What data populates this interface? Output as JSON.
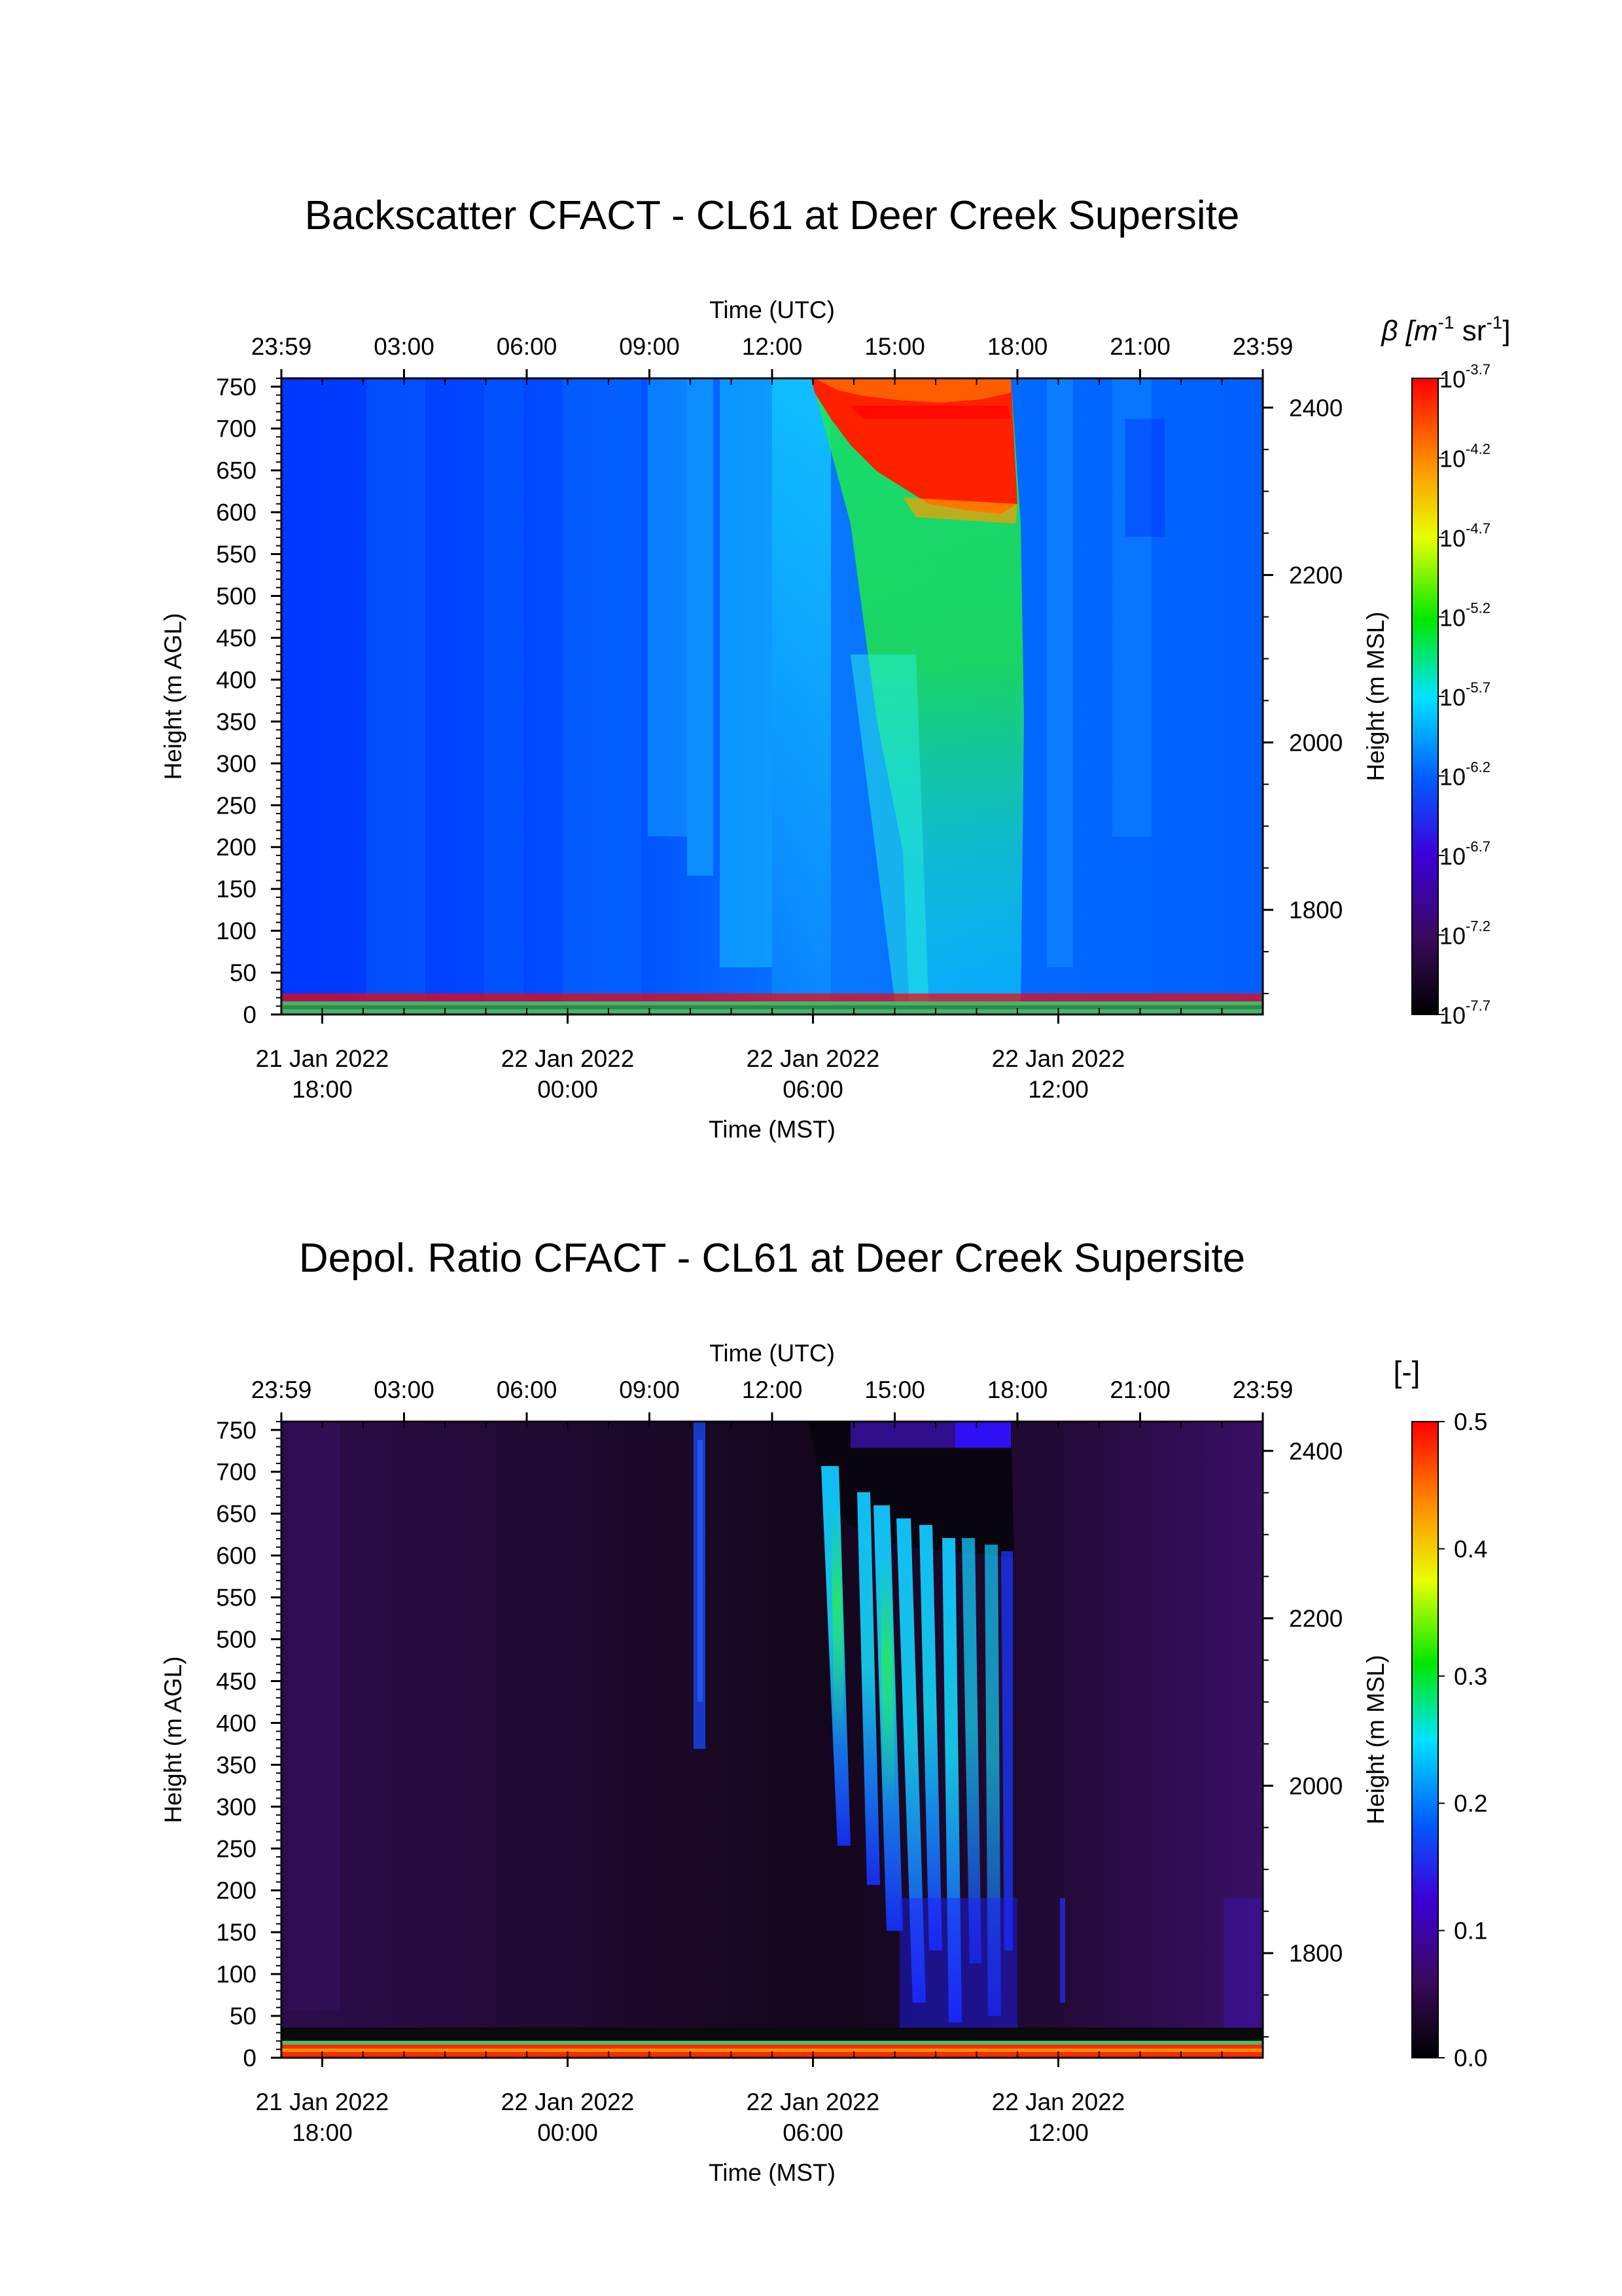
{
  "chart_data": [
    {
      "type": "heatmap",
      "title": "Backscatter CFACT - CL61 at Deer Creek Supersite",
      "top_axis_label": "Time (UTC)",
      "top_ticks": [
        "23:59",
        "03:00",
        "06:00",
        "09:00",
        "12:00",
        "15:00",
        "18:00",
        "21:00",
        "23:59"
      ],
      "bottom_axis_label": "Time (MST)",
      "bottom_ticks": [
        {
          "date": "21 Jan 2022",
          "time": "18:00"
        },
        {
          "date": "22 Jan 2022",
          "time": "00:00"
        },
        {
          "date": "22 Jan 2022",
          "time": "06:00"
        },
        {
          "date": "22 Jan 2022",
          "time": "12:00"
        }
      ],
      "ylabel": "Height (m AGL)",
      "ylim": [
        0,
        760
      ],
      "yticks": [
        "750",
        "700",
        "650",
        "600",
        "550",
        "500",
        "450",
        "400",
        "350",
        "300",
        "250",
        "200",
        "150",
        "100",
        "50",
        "0"
      ],
      "y2label": "Height (m MSL)",
      "y2ticks": [
        "2400",
        "2200",
        "2000",
        "1800"
      ],
      "colorbar": {
        "label_prefix": "β [m",
        "label_exp1": "-1",
        "label_mid": " sr",
        "label_exp2": "-1",
        "label_suffix": "]",
        "scale": "log",
        "tick_base": "10",
        "tick_exponents": [
          "-3.7",
          "-4.2",
          "-4.7",
          "-5.2",
          "-5.7",
          "-6.2",
          "-6.7",
          "-7.2",
          "-7.7"
        ],
        "range": [
          -7.7,
          -3.7
        ]
      }
    },
    {
      "type": "heatmap",
      "title": "Depol. Ratio CFACT - CL61 at Deer Creek Supersite",
      "top_axis_label": "Time (UTC)",
      "top_ticks": [
        "23:59",
        "03:00",
        "06:00",
        "09:00",
        "12:00",
        "15:00",
        "18:00",
        "21:00",
        "23:59"
      ],
      "bottom_axis_label": "Time (MST)",
      "bottom_ticks": [
        {
          "date": "21 Jan 2022",
          "time": "18:00"
        },
        {
          "date": "22 Jan 2022",
          "time": "00:00"
        },
        {
          "date": "22 Jan 2022",
          "time": "06:00"
        },
        {
          "date": "22 Jan 2022",
          "time": "12:00"
        }
      ],
      "ylabel": "Height (m AGL)",
      "ylim": [
        0,
        760
      ],
      "yticks": [
        "750",
        "700",
        "650",
        "600",
        "550",
        "500",
        "450",
        "400",
        "350",
        "300",
        "250",
        "200",
        "150",
        "100",
        "50",
        "0"
      ],
      "y2label": "Height (m MSL)",
      "y2ticks": [
        "2400",
        "2200",
        "2000",
        "1800"
      ],
      "colorbar": {
        "label": "[-]",
        "scale": "linear",
        "ticks": [
          "0.5",
          "0.4",
          "0.3",
          "0.2",
          "0.1",
          "0.0"
        ],
        "range": [
          0.0,
          0.5
        ]
      }
    }
  ]
}
